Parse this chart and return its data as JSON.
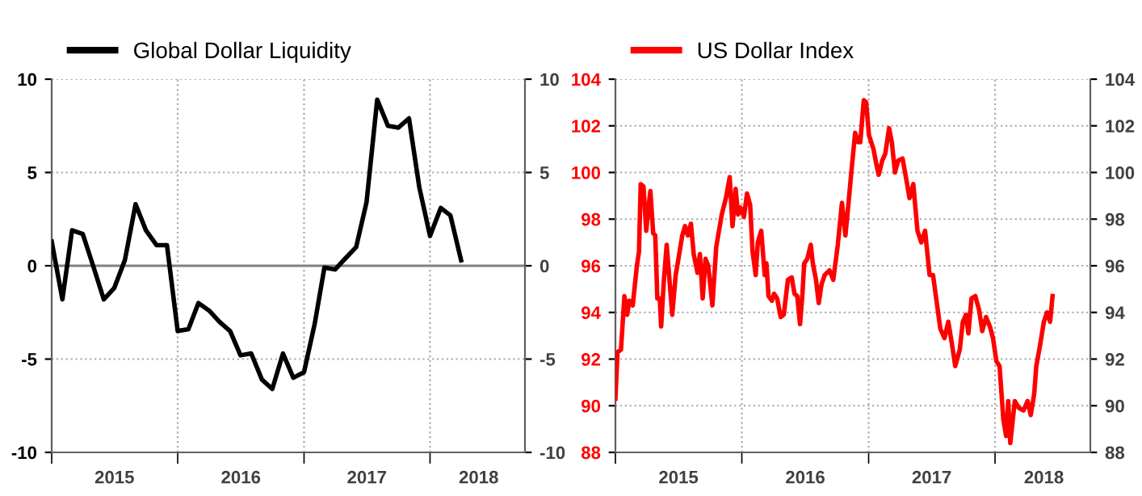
{
  "chart_data": [
    {
      "type": "line",
      "x": [
        "2015-01-01",
        "2015-02-01",
        "2015-03-01",
        "2015-04-01",
        "2015-05-01",
        "2015-06-01",
        "2015-07-01",
        "2015-08-01",
        "2015-09-01",
        "2015-10-01",
        "2015-11-01",
        "2015-12-01",
        "2016-01-01",
        "2016-02-01",
        "2016-03-01",
        "2016-04-01",
        "2016-05-01",
        "2016-06-01",
        "2016-07-01",
        "2016-08-01",
        "2016-09-01",
        "2016-10-01",
        "2016-11-01",
        "2016-12-01",
        "2017-01-01",
        "2017-02-01",
        "2017-03-01",
        "2017-04-01",
        "2017-05-01",
        "2017-06-01",
        "2017-07-01",
        "2017-08-01",
        "2017-09-01",
        "2017-10-01",
        "2017-11-01",
        "2017-12-01",
        "2018-01-01",
        "2018-02-01",
        "2018-03-01",
        "2018-04-01"
      ],
      "series": [
        {
          "name": "Global Dollar Liquidity",
          "color": "#000000",
          "values": [
            1.3,
            -1.8,
            1.9,
            1.7,
            0,
            -1.8,
            -1.2,
            0.3,
            3.3,
            1.9,
            1.1,
            1.1,
            -3.5,
            -3.4,
            -2.0,
            -2.4,
            -3.0,
            -3.5,
            -4.8,
            -4.7,
            -6.1,
            -6.6,
            -4.7,
            -6.0,
            -5.7,
            -3.1,
            -0.1,
            -0.2,
            0.4,
            1.0,
            3.4,
            8.9,
            7.5,
            7.4,
            7.9,
            4.2,
            1.6,
            3.1,
            2.7,
            0.3
          ]
        }
      ],
      "xlim": [
        "2015-01-01",
        "2018-10-03"
      ],
      "xticks": [
        {
          "value": "2015-01-01",
          "label": null
        },
        {
          "value": "2015-07-02",
          "label": "2015"
        },
        {
          "value": "2016-01-01",
          "label": null
        },
        {
          "value": "2016-07-02",
          "label": "2016"
        },
        {
          "value": "2017-01-01",
          "label": null
        },
        {
          "value": "2017-07-02",
          "label": "2017"
        },
        {
          "value": "2018-01-01",
          "label": null
        },
        {
          "value": "2018-05-22",
          "label": "2018"
        }
      ],
      "ylim": [
        -10,
        10
      ],
      "yticks": [
        -10,
        -5,
        0,
        5,
        10
      ],
      "y2lim": [
        -10,
        10
      ],
      "y2ticks": [
        -10,
        -5,
        0,
        5,
        10
      ],
      "ref_lines": [
        {
          "axis": "y",
          "value": 0,
          "color": "#808080"
        }
      ],
      "grid": true,
      "legend": "top left"
    },
    {
      "type": "line",
      "x": [
        "2015-01-01",
        "2015-01-07",
        "2015-01-17",
        "2015-01-27",
        "2015-02-04",
        "2015-02-10",
        "2015-02-20",
        "2015-03-04",
        "2015-03-10",
        "2015-03-15",
        "2015-03-23",
        "2015-03-31",
        "2015-04-08",
        "2015-04-12",
        "2015-04-20",
        "2015-04-26",
        "2015-05-02",
        "2015-05-09",
        "2015-05-13",
        "2015-05-21",
        "2015-05-29",
        "2015-06-06",
        "2015-06-14",
        "2015-06-24",
        "2015-07-02",
        "2015-07-13",
        "2015-07-21",
        "2015-07-29",
        "2015-08-07",
        "2015-08-15",
        "2015-08-26",
        "2015-09-02",
        "2015-09-10",
        "2015-09-18",
        "2015-09-26",
        "2015-10-08",
        "2015-10-19",
        "2015-11-04",
        "2015-11-16",
        "2015-11-27",
        "2015-12-05",
        "2015-12-14",
        "2015-12-21",
        "2015-12-28",
        "2016-01-07",
        "2016-01-16",
        "2016-01-25",
        "2016-02-01",
        "2016-02-10",
        "2016-02-16",
        "2016-02-26",
        "2016-03-07",
        "2016-03-12",
        "2016-03-18",
        "2016-03-28",
        "2016-04-03",
        "2016-04-12",
        "2016-04-22",
        "2016-05-01",
        "2016-05-13",
        "2016-05-24",
        "2016-06-01",
        "2016-06-09",
        "2016-06-17",
        "2016-06-24",
        "2016-06-29",
        "2016-07-08",
        "2016-07-18",
        "2016-07-24",
        "2016-08-02",
        "2016-08-10",
        "2016-08-18",
        "2016-08-27",
        "2016-09-10",
        "2016-09-21",
        "2016-10-04",
        "2016-10-16",
        "2016-10-26",
        "2016-11-04",
        "2016-11-12",
        "2016-11-23",
        "2016-12-02",
        "2016-12-08",
        "2016-12-18",
        "2016-12-25",
        "2017-01-02",
        "2017-01-15",
        "2017-01-24",
        "2017-01-30",
        "2017-02-09",
        "2017-02-18",
        "2017-03-01",
        "2017-03-09",
        "2017-03-18",
        "2017-03-27",
        "2017-04-09",
        "2017-04-21",
        "2017-04-29",
        "2017-05-10",
        "2017-05-22",
        "2017-06-02",
        "2017-06-13",
        "2017-06-26",
        "2017-07-06",
        "2017-07-16",
        "2017-07-27",
        "2017-08-08",
        "2017-08-19",
        "2017-08-30",
        "2017-09-08",
        "2017-09-21",
        "2017-09-30",
        "2017-10-09",
        "2017-10-16",
        "2017-10-25",
        "2017-11-05",
        "2017-11-16",
        "2017-11-25",
        "2017-12-06",
        "2017-12-17",
        "2017-12-26",
        "2018-01-05",
        "2018-01-14",
        "2018-01-25",
        "2018-02-02",
        "2018-02-08",
        "2018-02-14",
        "2018-02-27",
        "2018-03-11",
        "2018-03-24",
        "2018-04-05",
        "2018-04-14",
        "2018-04-24",
        "2018-04-30",
        "2018-05-11",
        "2018-05-22",
        "2018-05-31",
        "2018-06-09",
        "2018-06-16"
      ],
      "series": [
        {
          "name": "US Dollar Index",
          "color": "#ff0000",
          "values": [
            90.3,
            92.3,
            92.4,
            94.7,
            93.9,
            94.5,
            94.3,
            96.0,
            96.6,
            99.5,
            99.4,
            97.5,
            98.7,
            99.2,
            97.4,
            97.3,
            94.6,
            94.6,
            93.4,
            95.4,
            96.9,
            95.4,
            93.9,
            95.6,
            96.3,
            97.3,
            97.7,
            97.3,
            97.8,
            96.5,
            95.7,
            96.5,
            94.6,
            96.3,
            96.0,
            94.3,
            96.8,
            98.2,
            98.9,
            99.8,
            97.7,
            99.3,
            98.2,
            98.5,
            98.1,
            99.1,
            98.6,
            96.6,
            95.6,
            97.0,
            97.5,
            95.6,
            96.1,
            94.7,
            94.5,
            94.8,
            94.6,
            93.8,
            93.9,
            95.4,
            95.5,
            94.8,
            94.7,
            93.5,
            94.8,
            96.1,
            96.3,
            96.9,
            96.1,
            95.4,
            94.4,
            95.2,
            95.6,
            95.8,
            95.4,
            96.9,
            98.7,
            97.3,
            98.7,
            100.0,
            101.7,
            101.3,
            101.3,
            103.1,
            103.0,
            101.6,
            101.0,
            100.3,
            99.9,
            100.5,
            100.8,
            101.9,
            101.3,
            100.0,
            100.5,
            100.6,
            99.6,
            98.9,
            99.5,
            97.5,
            97.0,
            97.5,
            95.6,
            95.6,
            94.5,
            93.3,
            92.9,
            93.6,
            92.6,
            91.7,
            92.4,
            93.6,
            93.9,
            93.1,
            94.6,
            94.7,
            94.1,
            93.2,
            93.8,
            93.4,
            92.9,
            91.9,
            91.7,
            89.4,
            88.7,
            90.2,
            88.4,
            90.2,
            89.9,
            89.8,
            90.2,
            89.6,
            90.5,
            91.7,
            92.6,
            93.6,
            94.0,
            93.6,
            94.7
          ]
        }
      ],
      "xlim": [
        "2015-01-01",
        "2018-10-03"
      ],
      "xticks": [
        {
          "value": "2015-01-01",
          "label": null
        },
        {
          "value": "2015-07-02",
          "label": "2015"
        },
        {
          "value": "2016-01-01",
          "label": null
        },
        {
          "value": "2016-07-02",
          "label": "2016"
        },
        {
          "value": "2017-01-01",
          "label": null
        },
        {
          "value": "2017-07-02",
          "label": "2017"
        },
        {
          "value": "2018-01-01",
          "label": null
        },
        {
          "value": "2018-05-22",
          "label": "2018"
        }
      ],
      "ylim": [
        88,
        104
      ],
      "yticks": [
        88,
        90,
        92,
        94,
        96,
        98,
        100,
        102,
        104
      ],
      "y2lim": [
        88,
        104
      ],
      "y2ticks": [
        88,
        90,
        92,
        94,
        96,
        98,
        100,
        102,
        104
      ],
      "grid": true,
      "legend": "top left"
    }
  ]
}
